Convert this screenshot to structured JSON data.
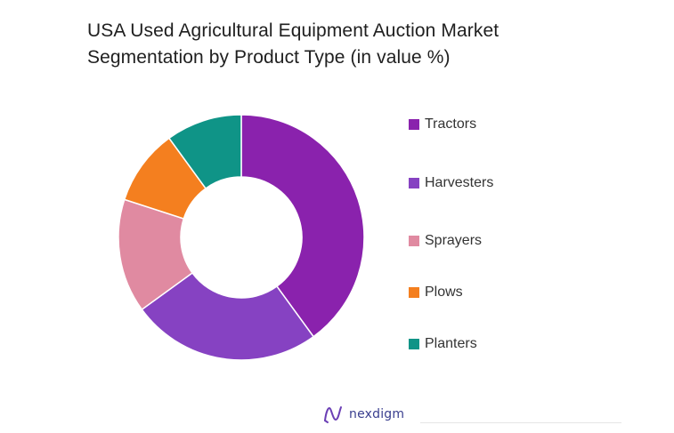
{
  "chart_data": {
    "type": "pie",
    "variant": "donut",
    "title_lines": [
      "USA Used Agricultural Equipment Auction Market",
      "Segmentation by Product Type (in value %)"
    ],
    "categories": [
      "Tractors",
      "Harvesters",
      "Sprayers",
      "Plows",
      "Planters"
    ],
    "values": [
      40,
      25,
      15,
      10,
      10
    ],
    "colors": [
      "#8a22ad",
      "#8642c2",
      "#e08aa1",
      "#f47f1f",
      "#0f9487"
    ],
    "legend_position": "right"
  },
  "brand": {
    "label": "nexdigm"
  }
}
